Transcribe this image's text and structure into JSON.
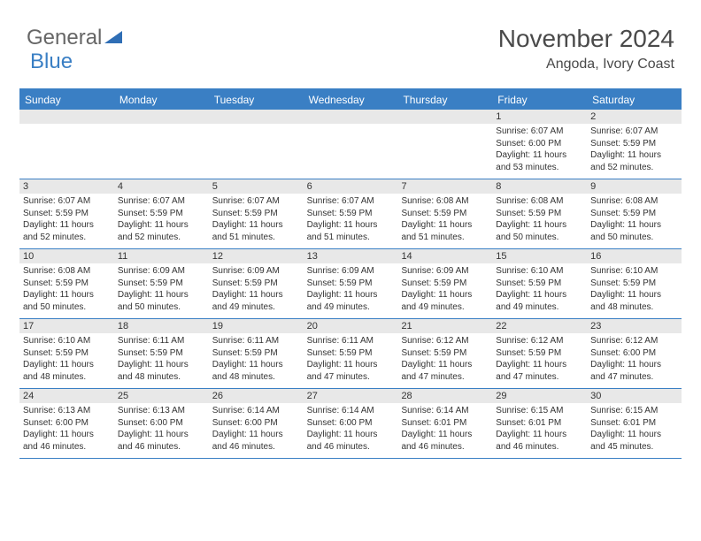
{
  "logo": {
    "general": "General",
    "blue": "Blue"
  },
  "title": "November 2024",
  "location": "Angoda, Ivory Coast",
  "colors": {
    "accent": "#3a7fc4",
    "header_text": "#ffffff",
    "daynum_bg": "#e8e8e8",
    "text": "#333333",
    "background": "#ffffff"
  },
  "day_labels": [
    "Sunday",
    "Monday",
    "Tuesday",
    "Wednesday",
    "Thursday",
    "Friday",
    "Saturday"
  ],
  "weeks": [
    [
      {
        "num": "",
        "lines": []
      },
      {
        "num": "",
        "lines": []
      },
      {
        "num": "",
        "lines": []
      },
      {
        "num": "",
        "lines": []
      },
      {
        "num": "",
        "lines": []
      },
      {
        "num": "1",
        "lines": [
          "Sunrise: 6:07 AM",
          "Sunset: 6:00 PM",
          "Daylight: 11 hours and 53 minutes."
        ]
      },
      {
        "num": "2",
        "lines": [
          "Sunrise: 6:07 AM",
          "Sunset: 5:59 PM",
          "Daylight: 11 hours and 52 minutes."
        ]
      }
    ],
    [
      {
        "num": "3",
        "lines": [
          "Sunrise: 6:07 AM",
          "Sunset: 5:59 PM",
          "Daylight: 11 hours and 52 minutes."
        ]
      },
      {
        "num": "4",
        "lines": [
          "Sunrise: 6:07 AM",
          "Sunset: 5:59 PM",
          "Daylight: 11 hours and 52 minutes."
        ]
      },
      {
        "num": "5",
        "lines": [
          "Sunrise: 6:07 AM",
          "Sunset: 5:59 PM",
          "Daylight: 11 hours and 51 minutes."
        ]
      },
      {
        "num": "6",
        "lines": [
          "Sunrise: 6:07 AM",
          "Sunset: 5:59 PM",
          "Daylight: 11 hours and 51 minutes."
        ]
      },
      {
        "num": "7",
        "lines": [
          "Sunrise: 6:08 AM",
          "Sunset: 5:59 PM",
          "Daylight: 11 hours and 51 minutes."
        ]
      },
      {
        "num": "8",
        "lines": [
          "Sunrise: 6:08 AM",
          "Sunset: 5:59 PM",
          "Daylight: 11 hours and 50 minutes."
        ]
      },
      {
        "num": "9",
        "lines": [
          "Sunrise: 6:08 AM",
          "Sunset: 5:59 PM",
          "Daylight: 11 hours and 50 minutes."
        ]
      }
    ],
    [
      {
        "num": "10",
        "lines": [
          "Sunrise: 6:08 AM",
          "Sunset: 5:59 PM",
          "Daylight: 11 hours and 50 minutes."
        ]
      },
      {
        "num": "11",
        "lines": [
          "Sunrise: 6:09 AM",
          "Sunset: 5:59 PM",
          "Daylight: 11 hours and 50 minutes."
        ]
      },
      {
        "num": "12",
        "lines": [
          "Sunrise: 6:09 AM",
          "Sunset: 5:59 PM",
          "Daylight: 11 hours and 49 minutes."
        ]
      },
      {
        "num": "13",
        "lines": [
          "Sunrise: 6:09 AM",
          "Sunset: 5:59 PM",
          "Daylight: 11 hours and 49 minutes."
        ]
      },
      {
        "num": "14",
        "lines": [
          "Sunrise: 6:09 AM",
          "Sunset: 5:59 PM",
          "Daylight: 11 hours and 49 minutes."
        ]
      },
      {
        "num": "15",
        "lines": [
          "Sunrise: 6:10 AM",
          "Sunset: 5:59 PM",
          "Daylight: 11 hours and 49 minutes."
        ]
      },
      {
        "num": "16",
        "lines": [
          "Sunrise: 6:10 AM",
          "Sunset: 5:59 PM",
          "Daylight: 11 hours and 48 minutes."
        ]
      }
    ],
    [
      {
        "num": "17",
        "lines": [
          "Sunrise: 6:10 AM",
          "Sunset: 5:59 PM",
          "Daylight: 11 hours and 48 minutes."
        ]
      },
      {
        "num": "18",
        "lines": [
          "Sunrise: 6:11 AM",
          "Sunset: 5:59 PM",
          "Daylight: 11 hours and 48 minutes."
        ]
      },
      {
        "num": "19",
        "lines": [
          "Sunrise: 6:11 AM",
          "Sunset: 5:59 PM",
          "Daylight: 11 hours and 48 minutes."
        ]
      },
      {
        "num": "20",
        "lines": [
          "Sunrise: 6:11 AM",
          "Sunset: 5:59 PM",
          "Daylight: 11 hours and 47 minutes."
        ]
      },
      {
        "num": "21",
        "lines": [
          "Sunrise: 6:12 AM",
          "Sunset: 5:59 PM",
          "Daylight: 11 hours and 47 minutes."
        ]
      },
      {
        "num": "22",
        "lines": [
          "Sunrise: 6:12 AM",
          "Sunset: 5:59 PM",
          "Daylight: 11 hours and 47 minutes."
        ]
      },
      {
        "num": "23",
        "lines": [
          "Sunrise: 6:12 AM",
          "Sunset: 6:00 PM",
          "Daylight: 11 hours and 47 minutes."
        ]
      }
    ],
    [
      {
        "num": "24",
        "lines": [
          "Sunrise: 6:13 AM",
          "Sunset: 6:00 PM",
          "Daylight: 11 hours and 46 minutes."
        ]
      },
      {
        "num": "25",
        "lines": [
          "Sunrise: 6:13 AM",
          "Sunset: 6:00 PM",
          "Daylight: 11 hours and 46 minutes."
        ]
      },
      {
        "num": "26",
        "lines": [
          "Sunrise: 6:14 AM",
          "Sunset: 6:00 PM",
          "Daylight: 11 hours and 46 minutes."
        ]
      },
      {
        "num": "27",
        "lines": [
          "Sunrise: 6:14 AM",
          "Sunset: 6:00 PM",
          "Daylight: 11 hours and 46 minutes."
        ]
      },
      {
        "num": "28",
        "lines": [
          "Sunrise: 6:14 AM",
          "Sunset: 6:01 PM",
          "Daylight: 11 hours and 46 minutes."
        ]
      },
      {
        "num": "29",
        "lines": [
          "Sunrise: 6:15 AM",
          "Sunset: 6:01 PM",
          "Daylight: 11 hours and 46 minutes."
        ]
      },
      {
        "num": "30",
        "lines": [
          "Sunrise: 6:15 AM",
          "Sunset: 6:01 PM",
          "Daylight: 11 hours and 45 minutes."
        ]
      }
    ]
  ]
}
